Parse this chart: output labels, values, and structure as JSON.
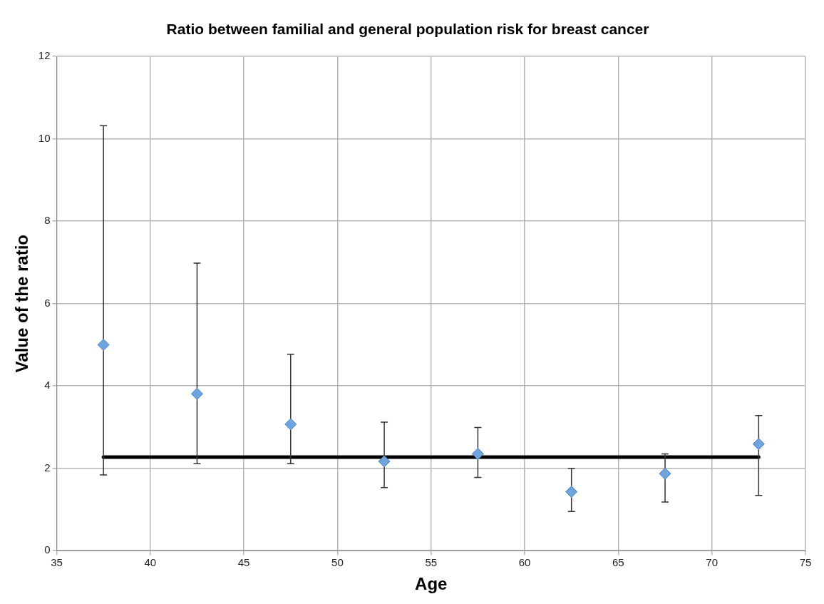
{
  "chart_data": {
    "type": "scatter",
    "title": "Ratio between familial and general population risk for breast cancer",
    "xlabel": "Age",
    "ylabel": "Value of the ratio",
    "xlim": [
      35,
      75
    ],
    "xticks": [
      35,
      40,
      45,
      50,
      55,
      60,
      65,
      70,
      75
    ],
    "ylim": [
      0,
      12
    ],
    "yticks": [
      0,
      2,
      4,
      6,
      8,
      10,
      12
    ],
    "grid": true,
    "legend": false,
    "marker": "diamond",
    "series": [
      {
        "color": "#6fa5dc",
        "x": [
          37.5,
          42.5,
          47.5,
          52.5,
          57.5,
          62.5,
          67.5,
          72.5
        ],
        "values": [
          5.0,
          3.81,
          3.07,
          2.17,
          2.35,
          1.43,
          1.87,
          2.59
        ],
        "errors": [
          [
            1.84,
            10.32
          ],
          [
            2.11,
            6.98
          ],
          [
            2.11,
            4.77
          ],
          [
            1.53,
            3.12
          ],
          [
            1.78,
            2.99
          ],
          [
            0.95,
            2.0
          ],
          [
            1.18,
            2.35
          ],
          [
            1.34,
            3.28
          ]
        ]
      },
      {
        "type": "line",
        "color": "#000000",
        "x": [
          37.5,
          72.5
        ],
        "values": [
          2.27,
          2.27
        ],
        "marker": "none",
        "line_style": "solid"
      }
    ]
  }
}
